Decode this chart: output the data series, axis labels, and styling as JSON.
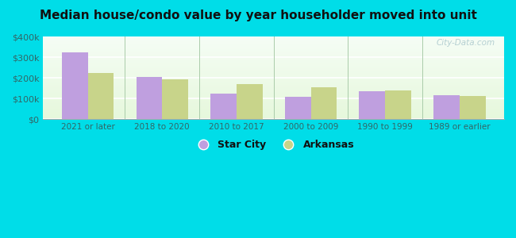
{
  "title": "Median house/condo value by year householder moved into unit",
  "categories": [
    "2021 or later",
    "2018 to 2020",
    "2010 to 2017",
    "2000 to 2009",
    "1990 to 1999",
    "1989 or earlier"
  ],
  "star_city_values": [
    325000,
    205000,
    125000,
    108000,
    135000,
    118000
  ],
  "arkansas_values": [
    225000,
    192000,
    170000,
    155000,
    138000,
    113000
  ],
  "star_city_color": "#bf9fdf",
  "arkansas_color": "#c8d48a",
  "background_outer": "#00dde8",
  "ylim": [
    0,
    400000
  ],
  "yticks": [
    0,
    100000,
    200000,
    300000,
    400000
  ],
  "ytick_labels": [
    "$0",
    "$100k",
    "$200k",
    "$300k",
    "$400k"
  ],
  "bar_width": 0.35,
  "legend_labels": [
    "Star City",
    "Arkansas"
  ],
  "watermark": "City-Data.com"
}
